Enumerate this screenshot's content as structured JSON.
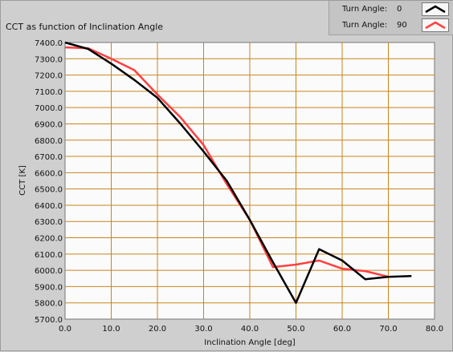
{
  "chart_data": {
    "type": "line",
    "title": "CCT as function of Inclination Angle",
    "xlabel": "Inclination Angle [deg]",
    "ylabel": "CCT [K]",
    "xlim": [
      0,
      80
    ],
    "ylim": [
      5700,
      7400
    ],
    "xticks": [
      0,
      10,
      20,
      30,
      40,
      50,
      60,
      70,
      80
    ],
    "yticks": [
      5700,
      5800,
      5900,
      6000,
      6100,
      6200,
      6300,
      6400,
      6500,
      6600,
      6700,
      6800,
      6900,
      7000,
      7100,
      7200,
      7300,
      7400
    ],
    "grid": true,
    "legend_position": "top-right",
    "series": [
      {
        "name": "Turn Angle: 0",
        "legend_label": "Turn Angle:",
        "legend_value": "0",
        "color": "#000000",
        "x": [
          0,
          5,
          10,
          15,
          20,
          25,
          30,
          35,
          40,
          45,
          50,
          55,
          60,
          65,
          70,
          75
        ],
        "y": [
          7400,
          7360,
          7270,
          7170,
          7060,
          6900,
          6730,
          6550,
          6310,
          6050,
          5800,
          6130,
          6060,
          5945,
          5960,
          5965
        ]
      },
      {
        "name": "Turn Angle: 90",
        "legend_label": "Turn Angle:",
        "legend_value": "90",
        "color": "#ff4040",
        "x": [
          0,
          5,
          10,
          15,
          20,
          25,
          30,
          35,
          40,
          45,
          50,
          55,
          60,
          65,
          70
        ],
        "y": [
          7370,
          7365,
          7300,
          7230,
          7080,
          6940,
          6770,
          6530,
          6310,
          6020,
          6035,
          6060,
          6010,
          5995,
          5960
        ]
      }
    ]
  }
}
